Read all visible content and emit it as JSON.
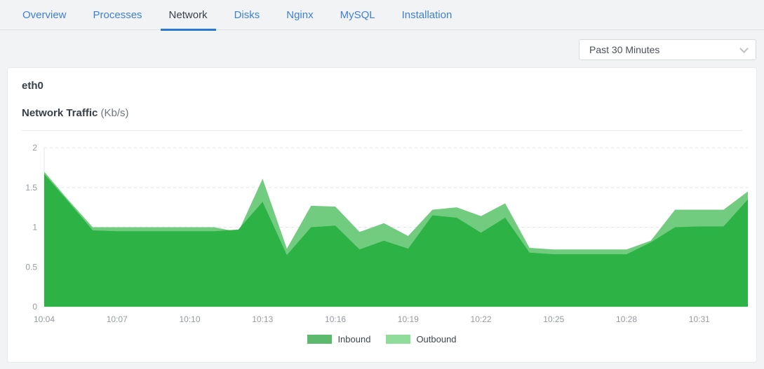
{
  "tabs": {
    "items": [
      {
        "label": "Overview",
        "active": false
      },
      {
        "label": "Processes",
        "active": false
      },
      {
        "label": "Network",
        "active": true
      },
      {
        "label": "Disks",
        "active": false
      },
      {
        "label": "Nginx",
        "active": false
      },
      {
        "label": "MySQL",
        "active": false
      },
      {
        "label": "Installation",
        "active": false
      }
    ]
  },
  "toolbar": {
    "time_range": "Past 30 Minutes",
    "chevron_icon": "chevron-down"
  },
  "card": {
    "title": "eth0",
    "chart_heading": "Network Traffic",
    "chart_heading_unit": "(Kb/s)"
  },
  "legend": {
    "items": [
      {
        "label": "Inbound",
        "color": "#5cb96e"
      },
      {
        "label": "Outbound",
        "color": "#8fdc9b"
      }
    ]
  },
  "colors": {
    "tab_link": "#3f7fd6",
    "tab_active_text": "#3a414b",
    "tab_active_underline": "#2b77d2",
    "inbound_fill": "#2db245",
    "outbound_fill": "#72cc7f",
    "grid_line": "#e2e4e7",
    "axis_line": "#d8dbdf",
    "axis_text": "#959aa1",
    "page_background": "#f2f3f5",
    "card_background": "#ffffff"
  },
  "chart_data": {
    "type": "area",
    "title": "Network Traffic (Kb/s)",
    "ylabel": "Kb/s",
    "ylim": [
      0,
      2
    ],
    "yticks": [
      0,
      0.5,
      1,
      1.5,
      2
    ],
    "grid": "horizontal-dashed",
    "legend_position": "bottom",
    "xtick_every": 3,
    "x": [
      "10:04",
      "10:05",
      "10:06",
      "10:07",
      "10:08",
      "10:09",
      "10:10",
      "10:11",
      "10:12",
      "10:13",
      "10:14",
      "10:15",
      "10:16",
      "10:17",
      "10:18",
      "10:19",
      "10:20",
      "10:21",
      "10:22",
      "10:23",
      "10:24",
      "10:25",
      "10:26",
      "10:27",
      "10:28",
      "10:29",
      "10:30",
      "10:31",
      "10:32",
      "10:33"
    ],
    "series": [
      {
        "name": "Inbound",
        "color": "#2db245",
        "values": [
          1.67,
          1.32,
          0.96,
          0.95,
          0.95,
          0.95,
          0.95,
          0.95,
          0.97,
          1.32,
          0.65,
          1.0,
          1.02,
          0.72,
          0.83,
          0.73,
          1.15,
          1.12,
          0.93,
          1.12,
          0.68,
          0.66,
          0.66,
          0.66,
          0.66,
          0.81,
          1.0,
          1.01,
          1.01,
          1.35
        ]
      },
      {
        "name": "Outbound",
        "color": "#72cc7f",
        "values": [
          1.7,
          1.34,
          1.0,
          1.0,
          1.0,
          1.0,
          1.0,
          1.0,
          0.94,
          1.61,
          0.73,
          1.27,
          1.26,
          0.94,
          1.05,
          0.89,
          1.22,
          1.25,
          1.14,
          1.3,
          0.74,
          0.72,
          0.72,
          0.72,
          0.72,
          0.83,
          1.22,
          1.22,
          1.22,
          1.45
        ]
      }
    ]
  }
}
